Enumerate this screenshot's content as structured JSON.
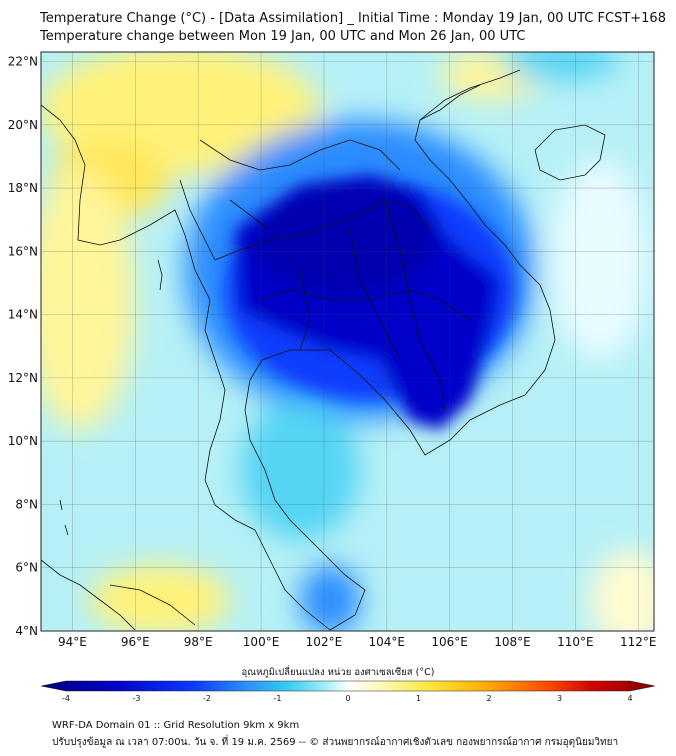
{
  "title_line1": "Temperature Change (°C) - [Data Assimilation] _ Initial Time : Monday 19 Jan, 00 UTC FCST+168",
  "title_line2": "Temperature change between Mon 19 Jan, 00 UTC and Mon 26 Jan, 00 UTC",
  "map": {
    "lon_range": [
      93,
      112.5
    ],
    "lat_range": [
      4,
      22.3
    ],
    "lon_ticks": [
      "94°E",
      "96°E",
      "98°E",
      "100°E",
      "102°E",
      "104°E",
      "106°E",
      "108°E",
      "110°E",
      "112°E"
    ],
    "lat_ticks": [
      "4°N",
      "6°N",
      "8°N",
      "10°N",
      "12°N",
      "14°N",
      "16°N",
      "18°N",
      "20°N",
      "22°N"
    ]
  },
  "colorbar": {
    "label": "อุณหภูมิเปลี่ยนแปลง หน่วย องศาเซลเซียส (°C)",
    "range": [
      -4,
      4
    ],
    "ticks": [
      "-4",
      "-3",
      "-2",
      "-1",
      "0",
      "1",
      "2",
      "3",
      "4"
    ],
    "colors": [
      "#00007a",
      "#0000c8",
      "#0a3cff",
      "#2a8cff",
      "#33ccf2",
      "#9cecf8",
      "#ffffff",
      "#fff8b0",
      "#ffe840",
      "#ffb000",
      "#ff5000",
      "#d00000",
      "#800000"
    ]
  },
  "footer_line1": "WRF-DA Domain 01 :: Grid Resolution 9km x 9km",
  "footer_line2": "ปรับปรุงข้อมูล ณ เวลา 07:00น. วัน จ. ที่ 19 ม.ค. 2569 -- © ส่วนพยากรณ์อากาศเชิงตัวเลข กองพยากรณ์อากาศ กรมอุตุนิยมวิทยา"
}
